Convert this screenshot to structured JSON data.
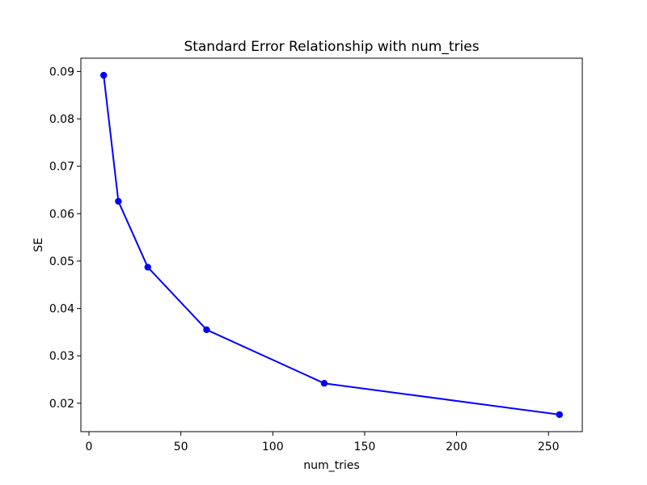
{
  "figure": {
    "background": "#ffffff",
    "text_color": "#000000",
    "spine_color": "#000000"
  },
  "chart_data": {
    "type": "line",
    "title": "Standard Error Relationship with num_tries",
    "xlabel": "num_tries",
    "ylabel": "SE",
    "x": [
      8,
      16,
      32,
      64,
      128,
      256
    ],
    "y": [
      0.0892,
      0.0626,
      0.0487,
      0.0355,
      0.0242,
      0.0176
    ],
    "line_color": "#0000ff",
    "marker": "circle",
    "xlim": [
      -4.4,
      268.4
    ],
    "ylim": [
      0.014,
      0.0928
    ],
    "x_ticks": [
      0,
      50,
      100,
      150,
      200,
      250
    ],
    "x_tick_labels": [
      "0",
      "50",
      "100",
      "150",
      "200",
      "250"
    ],
    "y_ticks": [
      0.02,
      0.03,
      0.04,
      0.05,
      0.06,
      0.07,
      0.08,
      0.09
    ],
    "y_tick_labels": [
      "0.02",
      "0.03",
      "0.04",
      "0.05",
      "0.06",
      "0.07",
      "0.08",
      "0.09"
    ],
    "grid": false,
    "legend": null
  }
}
